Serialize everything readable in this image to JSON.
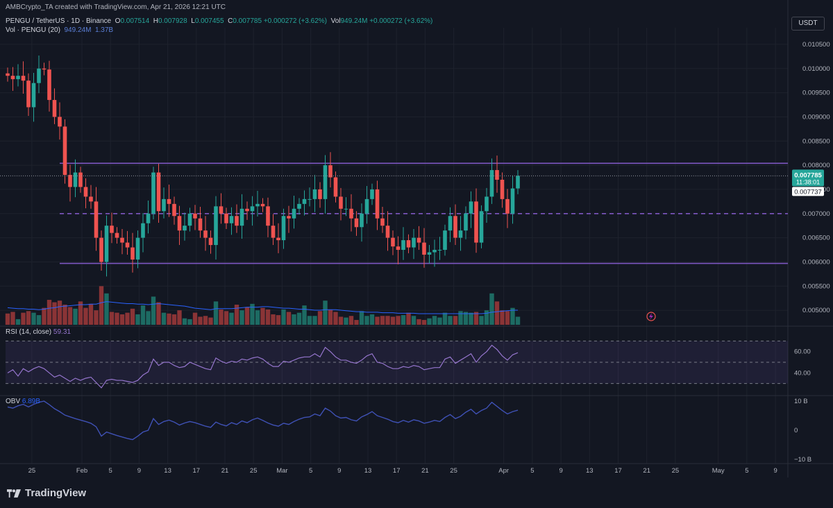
{
  "header": {
    "created_by": "AMBCrypto_TA created with TradingView.com, Apr 21, 2026 12:21 UTC",
    "symbol": "PENGU / TetherUS · 1D · Binance",
    "o_label": "O",
    "o_value": "0.007514",
    "h_label": "H",
    "h_value": "0.007928",
    "l_label": "L",
    "l_value": "0.007455",
    "c_label": "C",
    "c_value": "0.007785",
    "change": "+0.000272 (+3.62%)",
    "vol_label": "Vol",
    "vol_value": "949.24M",
    "vol_change": "+0.000272 (+3.62%)",
    "vol_indicator_label": "Vol · PENGU (20)",
    "vol_indicator_v1": "949.24M",
    "vol_indicator_v2": "1.37B",
    "currency": "USDT"
  },
  "rsi": {
    "label": "RSI (14, close)",
    "value": "59.31"
  },
  "obv": {
    "label": "OBV",
    "value": "6.89B"
  },
  "footer": {
    "logo_text": "TradingView"
  },
  "colors": {
    "bg": "#131722",
    "up": "#26a69a",
    "down": "#ef5350",
    "level": "#7e57c2",
    "rsi": "#9575cd",
    "obv": "#3f51b5"
  },
  "chart_data": {
    "type": "candlestick",
    "symbol": "PENGU/USDT",
    "timeframe": "1D",
    "price_axis": {
      "min": 0.0047,
      "max": 0.0107,
      "ticks": [
        "0.010500",
        "0.010000",
        "0.009500",
        "0.009000",
        "0.008500",
        "0.008000",
        "0.007500",
        "0.007000",
        "0.006500",
        "0.006000",
        "0.005500",
        "0.005000"
      ]
    },
    "price_labels": {
      "current": "0.007785",
      "countdown": "11:38:01",
      "second": "0.007737"
    },
    "x_ticks": [
      {
        "label": "25",
        "day": -7
      },
      {
        "label": "Feb",
        "day": 0
      },
      {
        "label": "5",
        "day": 4
      },
      {
        "label": "9",
        "day": 8
      },
      {
        "label": "13",
        "day": 12
      },
      {
        "label": "17",
        "day": 16
      },
      {
        "label": "21",
        "day": 20
      },
      {
        "label": "25",
        "day": 24
      },
      {
        "label": "Mar",
        "day": 28
      },
      {
        "label": "5",
        "day": 32
      },
      {
        "label": "9",
        "day": 36
      },
      {
        "label": "13",
        "day": 40
      },
      {
        "label": "17",
        "day": 44
      },
      {
        "label": "21",
        "day": 48
      },
      {
        "label": "25",
        "day": 52
      },
      {
        "label": "Apr",
        "day": 59
      },
      {
        "label": "5",
        "day": 63
      },
      {
        "label": "9",
        "day": 67
      },
      {
        "label": "13",
        "day": 71
      },
      {
        "label": "17",
        "day": 75
      },
      {
        "label": "21",
        "day": 79
      },
      {
        "label": "25",
        "day": 83
      },
      {
        "label": "May",
        "day": 89
      },
      {
        "label": "5",
        "day": 93
      },
      {
        "label": "9",
        "day": 97
      }
    ],
    "levels": [
      {
        "price": 0.00804,
        "style": "solid"
      },
      {
        "price": 0.007,
        "style": "dashed"
      },
      {
        "price": 0.00597,
        "style": "solid"
      }
    ],
    "closes": [
      0.00985,
      0.00978,
      0.00985,
      0.00975,
      0.0092,
      0.0097,
      0.01,
      0.00998,
      0.00935,
      0.009,
      0.0088,
      0.0078,
      0.00755,
      0.00785,
      0.00755,
      0.00735,
      0.00725,
      0.0065,
      0.006,
      0.00675,
      0.0066,
      0.0065,
      0.0064,
      0.0063,
      0.00605,
      0.0065,
      0.0068,
      0.007,
      0.00785,
      0.00705,
      0.0073,
      0.0072,
      0.00695,
      0.00665,
      0.00675,
      0.007,
      0.0069,
      0.00665,
      0.0065,
      0.00635,
      0.00715,
      0.007,
      0.0068,
      0.00695,
      0.00675,
      0.0071,
      0.00705,
      0.00715,
      0.0072,
      0.00715,
      0.00675,
      0.0065,
      0.00645,
      0.00695,
      0.0069,
      0.0071,
      0.0072,
      0.0073,
      0.0073,
      0.0075,
      0.0073,
      0.008,
      0.00775,
      0.00735,
      0.0071,
      0.0071,
      0.0069,
      0.00672,
      0.007,
      0.0073,
      0.0075,
      0.0069,
      0.00675,
      0.0065,
      0.00632,
      0.00625,
      0.00645,
      0.0063,
      0.0065,
      0.0064,
      0.00615,
      0.0062,
      0.00625,
      0.00625,
      0.00665,
      0.00695,
      0.0065,
      0.00665,
      0.007,
      0.00725,
      0.0064,
      0.00705,
      0.00735,
      0.0079,
      0.0077,
      0.0073,
      0.007,
      0.00752,
      0.00778
    ],
    "opens_first": 0.0099,
    "volumes_relative": [
      0.28,
      0.32,
      0.14,
      0.3,
      0.34,
      0.3,
      0.24,
      0.42,
      0.62,
      0.56,
      0.6,
      0.5,
      0.44,
      0.4,
      0.58,
      0.42,
      0.52,
      0.36,
      0.96,
      0.78,
      0.32,
      0.3,
      0.26,
      0.3,
      0.4,
      0.26,
      0.48,
      0.34,
      0.7,
      0.56,
      0.3,
      0.28,
      0.26,
      0.36,
      0.16,
      0.14,
      0.3,
      0.2,
      0.22,
      0.18,
      0.58,
      0.38,
      0.34,
      0.3,
      0.5,
      0.36,
      0.44,
      0.52,
      0.36,
      0.42,
      0.38,
      0.26,
      0.24,
      0.38,
      0.32,
      0.26,
      0.3,
      0.48,
      0.22,
      0.22,
      0.34,
      0.6,
      0.38,
      0.32,
      0.2,
      0.18,
      0.22,
      0.12,
      0.34,
      0.22,
      0.26,
      0.2,
      0.22,
      0.22,
      0.2,
      0.22,
      0.24,
      0.3,
      0.22,
      0.14,
      0.12,
      0.16,
      0.22,
      0.18,
      0.3,
      0.22,
      0.22,
      0.34,
      0.32,
      0.3,
      0.32,
      0.22,
      0.36,
      0.78,
      0.58,
      0.36,
      0.34,
      0.42,
      0.2
    ],
    "rsi_values": [
      40,
      43,
      37,
      44,
      41,
      44,
      46,
      44,
      40,
      36,
      38,
      35,
      32,
      35,
      33,
      35,
      36,
      31,
      26,
      33,
      34,
      33,
      33,
      32,
      31,
      33,
      38,
      41,
      53,
      47,
      50,
      50,
      47,
      45,
      46,
      50,
      48,
      46,
      44,
      43,
      54,
      51,
      49,
      51,
      50,
      53,
      52,
      54,
      55,
      53,
      49,
      46,
      46,
      51,
      50,
      52,
      54,
      55,
      55,
      58,
      55,
      64,
      60,
      55,
      52,
      52,
      50,
      49,
      52,
      56,
      58,
      50,
      49,
      46,
      44,
      44,
      46,
      45,
      47,
      46,
      43,
      44,
      45,
      45,
      53,
      55,
      49,
      52,
      55,
      58,
      50,
      56,
      60,
      66,
      62,
      56,
      52,
      57,
      59
    ],
    "rsi_axis": {
      "ticks": [
        "60.00",
        "40.00"
      ],
      "band_upper": 70,
      "band_lower": 30,
      "mid": 50
    },
    "obv_values": [
      8.0,
      7.6,
      8.4,
      8.9,
      8.0,
      8.9,
      9.6,
      10.0,
      8.8,
      7.4,
      6.4,
      5.2,
      4.6,
      4.0,
      3.5,
      3.0,
      2.4,
      1.2,
      -2.0,
      -0.6,
      -1.2,
      -1.8,
      -2.3,
      -2.8,
      -3.2,
      -2.0,
      -0.6,
      0.0,
      4.0,
      2.0,
      3.0,
      3.5,
      2.8,
      1.8,
      2.5,
      3.0,
      2.6,
      2.0,
      1.4,
      1.0,
      2.8,
      2.0,
      1.5,
      2.6,
      2.0,
      3.2,
      2.6,
      3.6,
      4.2,
      3.4,
      2.5,
      1.8,
      1.4,
      2.4,
      2.0,
      3.0,
      3.8,
      4.4,
      4.6,
      5.6,
      5.0,
      7.6,
      6.6,
      5.0,
      4.2,
      4.4,
      3.6,
      3.2,
      4.6,
      5.4,
      6.4,
      5.0,
      4.4,
      3.8,
      3.0,
      2.6,
      3.4,
      2.8,
      3.6,
      3.2,
      2.4,
      2.8,
      3.4,
      3.0,
      4.4,
      5.4,
      4.0,
      4.8,
      6.2,
      7.2,
      5.6,
      6.8,
      7.6,
      9.6,
      8.2,
      6.8,
      5.6,
      6.4,
      6.9
    ],
    "obv_axis": {
      "ticks": [
        "10 B",
        "0",
        "−10 B"
      ]
    },
    "volume_ma_relative": [
      0.34,
      0.33,
      0.32,
      0.32,
      0.31,
      0.31,
      0.3,
      0.31,
      0.33,
      0.34,
      0.36,
      0.37,
      0.38,
      0.39,
      0.4,
      0.4,
      0.41,
      0.41,
      0.44,
      0.46,
      0.45,
      0.44,
      0.43,
      0.42,
      0.42,
      0.41,
      0.41,
      0.4,
      0.41,
      0.42,
      0.41,
      0.4,
      0.39,
      0.38,
      0.37,
      0.35,
      0.33,
      0.32,
      0.31,
      0.3,
      0.32,
      0.32,
      0.32,
      0.32,
      0.33,
      0.34,
      0.35,
      0.35,
      0.35,
      0.36,
      0.36,
      0.35,
      0.34,
      0.33,
      0.33,
      0.32,
      0.31,
      0.31,
      0.3,
      0.29,
      0.29,
      0.3,
      0.3,
      0.3,
      0.29,
      0.28,
      0.27,
      0.26,
      0.26,
      0.25,
      0.25,
      0.25,
      0.24,
      0.24,
      0.24,
      0.23,
      0.23,
      0.23,
      0.23,
      0.22,
      0.22,
      0.22,
      0.22,
      0.22,
      0.22,
      0.22,
      0.22,
      0.22,
      0.22,
      0.22,
      0.22,
      0.22,
      0.23,
      0.25,
      0.26,
      0.27,
      0.28,
      0.29,
      0.29
    ]
  }
}
